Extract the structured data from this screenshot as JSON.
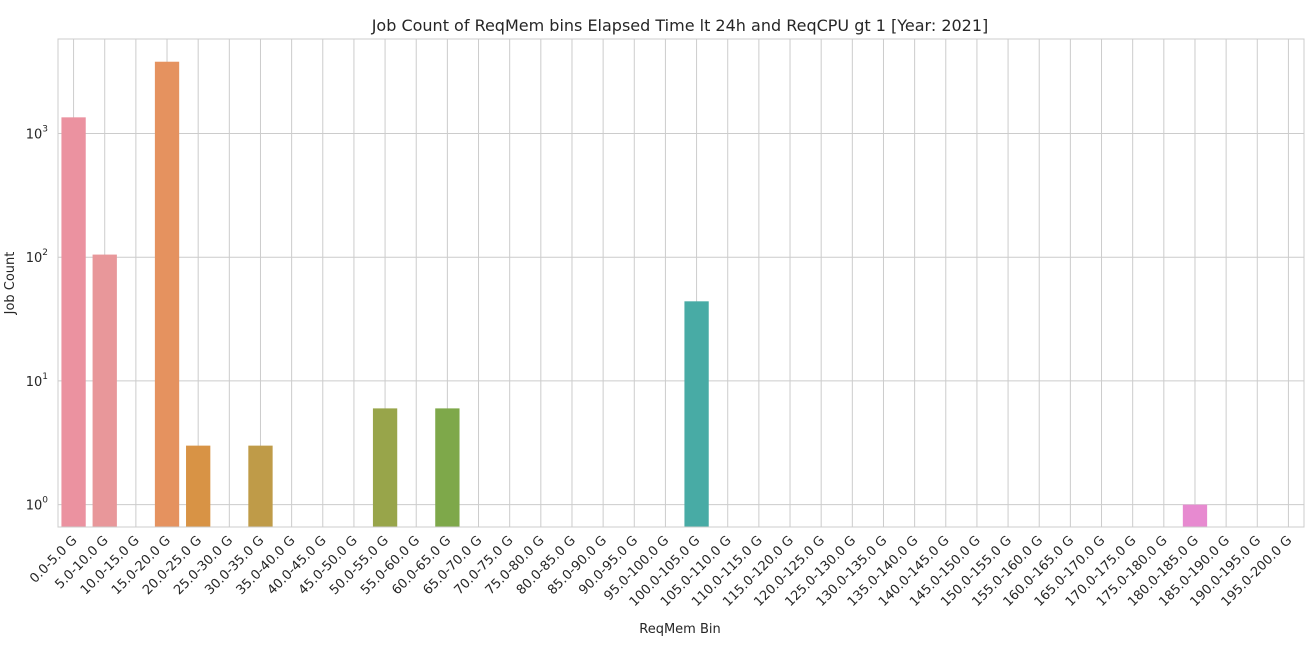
{
  "chart_data": {
    "type": "bar",
    "title": "Job Count of ReqMem bins Elapsed Time lt 24h and ReqCPU gt 1 [Year: 2021]",
    "xlabel": "ReqMem Bin",
    "ylabel": "Job Count",
    "yscale": "log",
    "ylim": [
      0.66,
      5800
    ],
    "yticks": [
      {
        "value": 1,
        "base": "10",
        "exp": "0"
      },
      {
        "value": 10,
        "base": "10",
        "exp": "1"
      },
      {
        "value": 100,
        "base": "10",
        "exp": "2"
      },
      {
        "value": 1000,
        "base": "10",
        "exp": "3"
      }
    ],
    "grid": true,
    "categories": [
      "0.0-5.0 G",
      "5.0-10.0 G",
      "10.0-15.0 G",
      "15.0-20.0 G",
      "20.0-25.0 G",
      "25.0-30.0 G",
      "30.0-35.0 G",
      "35.0-40.0 G",
      "40.0-45.0 G",
      "45.0-50.0 G",
      "50.0-55.0 G",
      "55.0-60.0 G",
      "60.0-65.0 G",
      "65.0-70.0 G",
      "70.0-75.0 G",
      "75.0-80.0 G",
      "80.0-85.0 G",
      "85.0-90.0 G",
      "90.0-95.0 G",
      "95.0-100.0 G",
      "100.0-105.0 G",
      "105.0-110.0 G",
      "110.0-115.0 G",
      "115.0-120.0 G",
      "120.0-125.0 G",
      "125.0-130.0 G",
      "130.0-135.0 G",
      "135.0-140.0 G",
      "140.0-145.0 G",
      "145.0-150.0 G",
      "150.0-155.0 G",
      "155.0-160.0 G",
      "160.0-165.0 G",
      "165.0-170.0 G",
      "170.0-175.0 G",
      "175.0-180.0 G",
      "180.0-185.0 G",
      "185.0-190.0 G",
      "190.0-195.0 G",
      "195.0-200.0 G"
    ],
    "values": [
      1350,
      105,
      0,
      3800,
      3,
      0,
      3,
      0,
      0,
      0,
      6,
      0,
      6,
      0,
      0,
      0,
      0,
      0,
      0,
      0,
      44,
      0,
      0,
      0,
      0,
      0,
      0,
      0,
      0,
      0,
      0,
      0,
      0,
      0,
      0,
      0,
      1,
      0,
      0,
      0
    ],
    "colors": [
      "#eb92a0",
      "#e8979a",
      "#e69a7c",
      "#e5925f",
      "#d89345",
      "#c99747",
      "#bf9b48",
      "#b49d47",
      "#a9a04a",
      "#a1a34c",
      "#98a54a",
      "#8ea74a",
      "#7ea84a",
      "#6aa94c",
      "#52ab58",
      "#4aab70",
      "#4aab80",
      "#49aa8e",
      "#48a999",
      "#47a9a2",
      "#48aba5",
      "#4aa9ab",
      "#4ba7b2",
      "#4ea4b9",
      "#52a1c2",
      "#589dcc",
      "#6598d6",
      "#7a92dc",
      "#8e8ce0",
      "#a186e2",
      "#b380e1",
      "#c47bde",
      "#d277d8",
      "#dc75d0",
      "#e377c6",
      "#e77bbc",
      "#e78ad0",
      "#e88ab8",
      "#e98aa8",
      "#ea8ea0"
    ]
  }
}
